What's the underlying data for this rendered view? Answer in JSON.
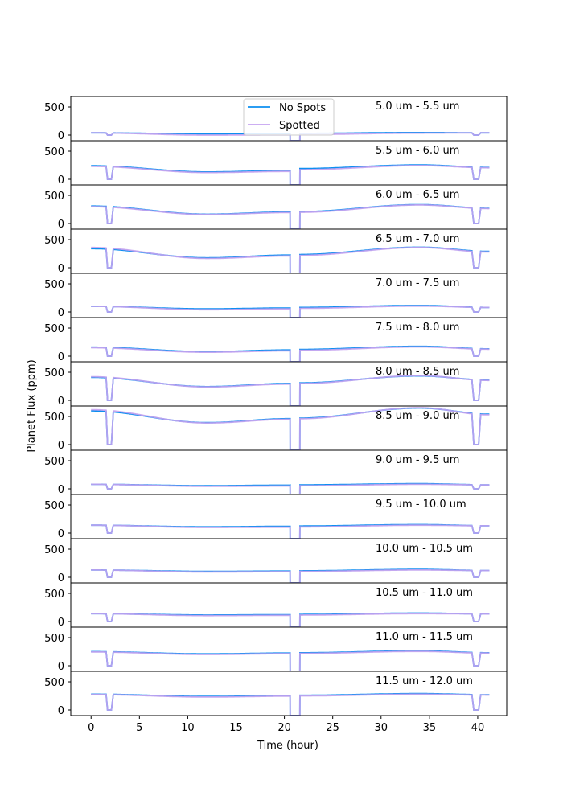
{
  "chart_data": {
    "type": "line",
    "xlabel": "Time (hour)",
    "ylabel": "Planet Flux (ppm)",
    "xlim": [
      -2.1,
      43.0
    ],
    "ylim": [
      -100,
      686
    ],
    "xticks": [
      0,
      5,
      10,
      15,
      20,
      25,
      30,
      35,
      40
    ],
    "yticks": [
      0,
      500
    ],
    "legend": {
      "placement": "top-center",
      "entries": [
        "No Spots",
        "Spotted"
      ]
    },
    "colors": {
      "No Spots": "#0d8ff0",
      "Spotted": "#c4a2f0"
    },
    "time_knots": [
      0,
      12,
      20.5,
      21.5,
      34,
      41.2
    ],
    "eclipses": [
      [
        1.55,
        1.7,
        2.1,
        2.3
      ],
      [
        39.4,
        39.6,
        40.1,
        40.3
      ]
    ],
    "transit": [
      20.6,
      21.6
    ],
    "panels": [
      {
        "label": "5.0 um - 5.5 um",
        "no_spots": [
          40,
          20,
          25,
          30,
          45,
          40
        ],
        "spotted": [
          40,
          0,
          5,
          10,
          35,
          40
        ]
      },
      {
        "label": "5.5 um - 6.0 um",
        "no_spots": [
          240,
          130,
          155,
          190,
          255,
          210
        ],
        "spotted": [
          230,
          120,
          140,
          170,
          245,
          205
        ]
      },
      {
        "label": "6.0 um - 6.5 um",
        "no_spots": [
          310,
          165,
          205,
          210,
          335,
          270
        ],
        "spotted": [
          300,
          160,
          195,
          200,
          330,
          265
        ]
      },
      {
        "label": "6.5 um - 7.0 um",
        "no_spots": [
          340,
          175,
          225,
          235,
          365,
          290
        ],
        "spotted": [
          360,
          165,
          210,
          220,
          360,
          280
        ]
      },
      {
        "label": "7.0 um - 7.5 um",
        "no_spots": [
          100,
          55,
          70,
          80,
          115,
          80
        ],
        "spotted": [
          100,
          40,
          55,
          65,
          105,
          80
        ]
      },
      {
        "label": "7.5 um - 8.0 um",
        "no_spots": [
          160,
          80,
          110,
          120,
          175,
          130
        ],
        "spotted": [
          150,
          70,
          95,
          105,
          165,
          125
        ]
      },
      {
        "label": "8.0 um - 8.5 um",
        "no_spots": [
          410,
          245,
          300,
          310,
          435,
          360
        ],
        "spotted": [
          420,
          240,
          290,
          300,
          440,
          355
        ]
      },
      {
        "label": "8.5 um - 9.0 um",
        "no_spots": [
          600,
          390,
          460,
          470,
          650,
          540
        ],
        "spotted": [
          620,
          385,
          450,
          460,
          655,
          530
        ]
      },
      {
        "label": "9.0 um - 9.5 um",
        "no_spots": [
          80,
          55,
          65,
          70,
          90,
          70
        ],
        "spotted": [
          80,
          45,
          50,
          55,
          80,
          70
        ]
      },
      {
        "label": "9.5 um - 10.0 um",
        "no_spots": [
          140,
          110,
          120,
          125,
          150,
          130
        ],
        "spotted": [
          140,
          100,
          105,
          110,
          140,
          130
        ]
      },
      {
        "label": "10.0 um - 10.5 um",
        "no_spots": [
          130,
          105,
          110,
          115,
          140,
          120
        ],
        "spotted": [
          130,
          95,
          100,
          105,
          130,
          120
        ]
      },
      {
        "label": "10.5 um - 11.0 um",
        "no_spots": [
          140,
          115,
          120,
          125,
          150,
          135
        ],
        "spotted": [
          140,
          105,
          110,
          115,
          140,
          135
        ]
      },
      {
        "label": "11.0 um - 11.5 um",
        "no_spots": [
          250,
          210,
          225,
          230,
          265,
          230
        ],
        "spotted": [
          245,
          200,
          215,
          220,
          255,
          225
        ]
      },
      {
        "label": "11.5 um - 12.0 um",
        "no_spots": [
          280,
          240,
          255,
          260,
          290,
          270
        ],
        "spotted": [
          275,
          230,
          245,
          250,
          280,
          265
        ]
      }
    ]
  }
}
